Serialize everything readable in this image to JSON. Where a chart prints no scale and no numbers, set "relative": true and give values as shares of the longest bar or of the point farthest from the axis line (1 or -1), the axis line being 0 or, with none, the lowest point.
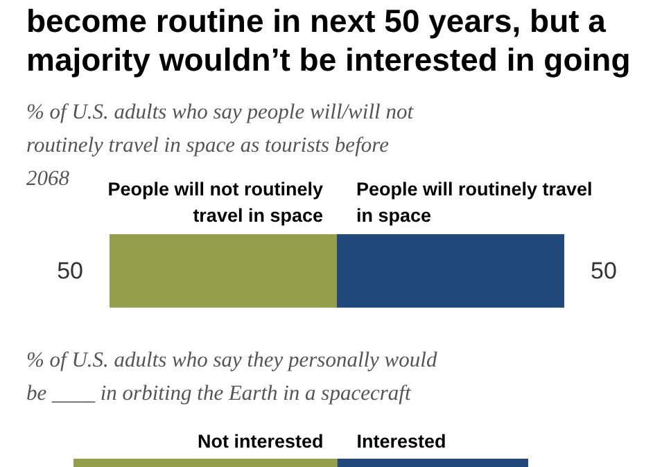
{
  "chart_data": [
    {
      "type": "bar",
      "title": "become routine in next 50 years, but a majority wouldn’t be interested in going",
      "subtitle": "% of U.S. adults who say people will/will not routinely travel in space as tourists before 2068",
      "orientation": "horizontal",
      "stacked": true,
      "data_labels": true,
      "tick_labels": false,
      "categories": [
        null
      ],
      "series": [
        {
          "name": "People will not routinely travel in space",
          "color": "#959e4a",
          "values": [
            50
          ]
        },
        {
          "name": "People will routinely travel in space",
          "color": "#22497c",
          "values": [
            50
          ]
        }
      ]
    },
    {
      "type": "bar",
      "subtitle": "% of U.S. adults who say they personally would be ____ in orbiting the Earth in a spacecraft",
      "orientation": "horizontal",
      "stacked": true,
      "relative": true,
      "categories": [
        null
      ],
      "series": [
        {
          "name": "Not interested",
          "color": "#959e4a",
          "values": [
            0.58
          ]
        },
        {
          "name": "Interested",
          "color": "#22497c",
          "values": [
            0.42
          ]
        }
      ]
    }
  ]
}
